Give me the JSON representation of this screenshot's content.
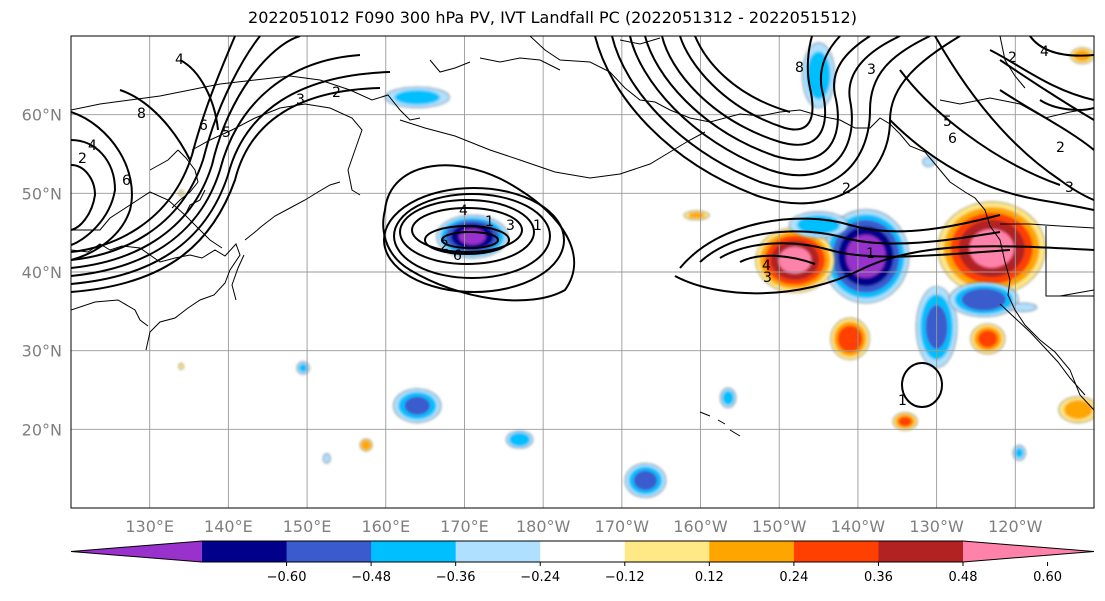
{
  "title": "2022051012 F090 300 hPa PV, IVT Landfall PC (2022051312 - 2022051512)",
  "map": {
    "projection": "equirectangular",
    "lon_range_east": [
      120,
      250
    ],
    "lat_range": [
      10,
      70
    ],
    "gridlines": true,
    "lat_ticks": [
      20,
      30,
      40,
      50,
      60
    ],
    "lat_labels": [
      "20°N",
      "30°N",
      "40°N",
      "50°N",
      "60°N"
    ],
    "lon_ticks_east": [
      130,
      140,
      150,
      160,
      170,
      180,
      190,
      200,
      210,
      220,
      230,
      240
    ],
    "lon_labels": [
      "130°E",
      "140°E",
      "150°E",
      "160°E",
      "170°E",
      "180°W",
      "170°W",
      "160°W",
      "150°W",
      "140°W",
      "130°W",
      "120°W"
    ]
  },
  "colorbar": {
    "orientation": "horizontal",
    "extend": "both",
    "ticks": [
      "−0.60",
      "−0.48",
      "−0.36",
      "−0.24",
      "−0.12",
      "0.12",
      "0.24",
      "0.36",
      "0.48",
      "0.60"
    ],
    "colors": [
      "#9932cc",
      "#00008b",
      "#3a5bcd",
      "#00bfff",
      "#b0e0ff",
      "#ffffff",
      "#ffe885",
      "#ffa500",
      "#ff4000",
      "#b22222",
      "#ff82ab"
    ]
  },
  "shading_field": {
    "name": "IVT Landfall PC",
    "units_shown": "",
    "anomalies": [
      {
        "lon": 171,
        "lat": 44.5,
        "rlon": 5,
        "rlat": 3,
        "value": -0.6
      },
      {
        "lon": 221,
        "lat": 42,
        "rlon": 6,
        "rlat": 6.5,
        "value": -0.65
      },
      {
        "lon": 212,
        "lat": 41.5,
        "rlon": 5.5,
        "rlat": 4.5,
        "value": 0.62
      },
      {
        "lon": 237,
        "lat": 43,
        "rlon": 7.5,
        "rlat": 6.5,
        "value": 0.62
      },
      {
        "lon": 230,
        "lat": 33,
        "rlon": 3,
        "rlat": 6,
        "value": -0.38
      },
      {
        "lon": 236,
        "lat": 36.5,
        "rlon": 5,
        "rlat": 2.5,
        "value": -0.45
      },
      {
        "lon": 215,
        "lat": 46,
        "rlon": 4.5,
        "rlat": 2,
        "value": -0.3
      },
      {
        "lon": 219,
        "lat": 31.5,
        "rlon": 2.8,
        "rlat": 3,
        "value": 0.45
      },
      {
        "lon": 236.5,
        "lat": 31.5,
        "rlon": 2.5,
        "rlat": 2.2,
        "value": 0.4
      },
      {
        "lon": 164,
        "lat": 23,
        "rlon": 3.5,
        "rlat": 2.5,
        "value": -0.38
      },
      {
        "lon": 177,
        "lat": 18.7,
        "rlon": 2,
        "rlat": 1.3,
        "value": -0.35
      },
      {
        "lon": 193,
        "lat": 13.5,
        "rlon": 3,
        "rlat": 2.5,
        "value": -0.4
      },
      {
        "lon": 149.5,
        "lat": 27.8,
        "rlon": 1,
        "rlat": 1,
        "value": -0.25
      },
      {
        "lon": 152.5,
        "lat": 16.3,
        "rlon": 0.6,
        "rlat": 0.8,
        "value": -0.2
      },
      {
        "lon": 157.5,
        "lat": 18,
        "rlon": 0.9,
        "rlat": 0.9,
        "value": 0.35
      },
      {
        "lon": 203.5,
        "lat": 24,
        "rlon": 1.2,
        "rlat": 1.5,
        "value": -0.3
      },
      {
        "lon": 226,
        "lat": 21,
        "rlon": 1.8,
        "rlat": 1.3,
        "value": 0.38
      },
      {
        "lon": 240.5,
        "lat": 17,
        "rlon": 1,
        "rlat": 1.2,
        "value": -0.25
      },
      {
        "lon": 248,
        "lat": 22.5,
        "rlon": 3,
        "rlat": 2,
        "value": 0.3
      },
      {
        "lon": 241,
        "lat": 35.5,
        "rlon": 2.3,
        "rlat": 0.7,
        "value": -0.2
      },
      {
        "lon": 164,
        "lat": 62.2,
        "rlon": 5,
        "rlat": 1.6,
        "value": -0.28
      },
      {
        "lon": 215,
        "lat": 65,
        "rlon": 2.5,
        "rlat": 5,
        "value": -0.3
      },
      {
        "lon": 199.5,
        "lat": 47.2,
        "rlon": 2,
        "rlat": 0.7,
        "value": 0.25
      },
      {
        "lon": 248.5,
        "lat": 67.5,
        "rlon": 1.8,
        "rlat": 1.2,
        "value": 0.3
      },
      {
        "lon": 134,
        "lat": 50,
        "rlon": 0.4,
        "rlat": 0.5,
        "value": 0.2
      },
      {
        "lon": 134,
        "lat": 28,
        "rlon": 0.4,
        "rlat": 0.5,
        "value": 0.2
      },
      {
        "lon": 229,
        "lat": 54,
        "rlon": 1,
        "rlat": 0.8,
        "value": -0.22
      }
    ]
  },
  "pv_contours": {
    "name": "300 hPa PV",
    "labels": [
      "2",
      "4",
      "6",
      "8",
      "6",
      "5",
      "4",
      "3",
      "2",
      "1",
      "3",
      "2",
      "1",
      "4",
      "6",
      "8",
      "3",
      "2",
      "5",
      "6",
      "3",
      "4",
      "2",
      "4",
      "2",
      "1",
      "3"
    ],
    "label_rotation": [
      -40,
      -40,
      -45,
      -45,
      -50,
      -35,
      -30,
      -30,
      -20,
      -50,
      -20,
      -20,
      0,
      0,
      0,
      -60,
      -10,
      -10,
      -30,
      -40,
      30,
      0,
      0,
      20,
      0,
      0,
      -20
    ]
  }
}
